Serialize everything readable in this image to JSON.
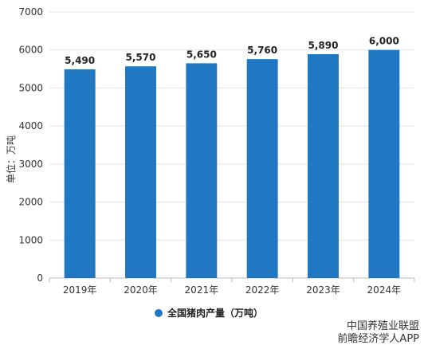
{
  "chart_data": {
    "type": "bar",
    "categories": [
      "2019年",
      "2020年",
      "2021年",
      "2022年",
      "2023年",
      "2024年"
    ],
    "series": [
      {
        "name": "全国猪肉产量（万吨）",
        "values": [
          5490,
          5570,
          5650,
          5760,
          5890,
          6000
        ],
        "color": "#1f78c1"
      }
    ],
    "data_labels": [
      "5,490",
      "5,570",
      "5,650",
      "5,760",
      "5,890",
      "6,000"
    ],
    "ylabel": "单位：万吨",
    "ylim": [
      0,
      7000
    ],
    "yticks": [
      0,
      1000,
      2000,
      3000,
      4000,
      5000,
      6000,
      7000
    ],
    "grid": true,
    "legend_position": "bottom"
  },
  "footer": {
    "line1": "中国养殖业联盟",
    "line2": "前瞻经济学人APP"
  }
}
